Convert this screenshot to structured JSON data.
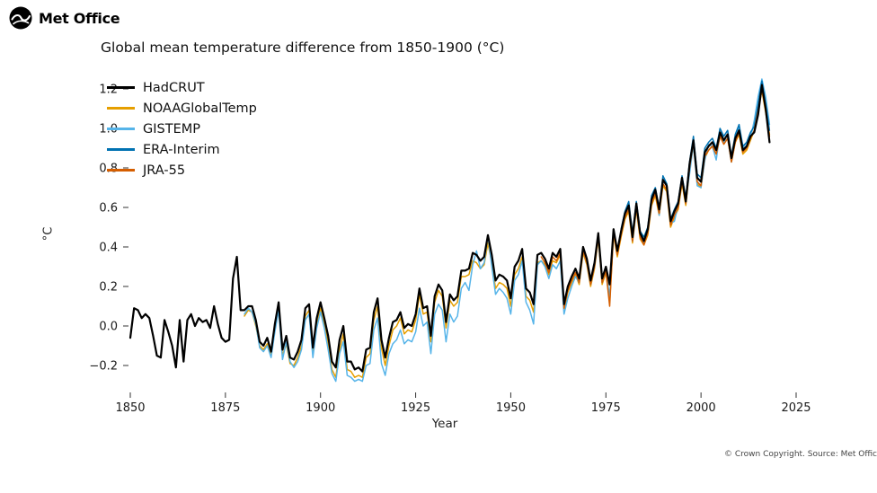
{
  "brand": {
    "name": "Met Office"
  },
  "footer": {
    "copyright": "© Crown Copyright. Source: Met Office"
  },
  "chart_data": {
    "type": "line",
    "title": "Global mean temperature difference from 1850-1900 (°C)",
    "xlabel": "Year",
    "ylabel": "°C",
    "xlim": [
      1845,
      2028
    ],
    "ylim": [
      -0.35,
      1.3
    ],
    "x_ticks": [
      1850,
      1875,
      1900,
      1925,
      1950,
      1975,
      2000,
      2025
    ],
    "y_ticks": [
      -0.2,
      0.0,
      0.2,
      0.4,
      0.6,
      0.8,
      1.0,
      1.2
    ],
    "grid": false,
    "legend_position": "top-left",
    "series": [
      {
        "name": "HadCRUT",
        "color": "#000000",
        "start_year": 1850,
        "values": [
          -0.06,
          0.09,
          0.08,
          0.04,
          0.06,
          0.04,
          -0.05,
          -0.15,
          -0.16,
          0.03,
          -0.03,
          -0.1,
          -0.21,
          0.03,
          -0.18,
          0.03,
          0.06,
          0.0,
          0.04,
          0.02,
          0.03,
          -0.01,
          0.1,
          0.01,
          -0.06,
          -0.08,
          -0.07,
          0.24,
          0.35,
          0.08,
          0.08,
          0.1,
          0.1,
          0.03,
          -0.08,
          -0.1,
          -0.06,
          -0.13,
          0.01,
          0.12,
          -0.12,
          -0.05,
          -0.16,
          -0.17,
          -0.13,
          -0.07,
          0.09,
          0.11,
          -0.11,
          0.04,
          0.12,
          0.04,
          -0.05,
          -0.18,
          -0.21,
          -0.07,
          0.0,
          -0.18,
          -0.18,
          -0.22,
          -0.21,
          -0.23,
          -0.12,
          -0.11,
          0.07,
          0.14,
          -0.07,
          -0.16,
          -0.06,
          0.02,
          0.03,
          0.07,
          -0.01,
          0.01,
          0.0,
          0.06,
          0.19,
          0.09,
          0.1,
          -0.05,
          0.15,
          0.21,
          0.18,
          0.02,
          0.16,
          0.13,
          0.15,
          0.28,
          0.28,
          0.29,
          0.37,
          0.36,
          0.33,
          0.35,
          0.46,
          0.36,
          0.23,
          0.26,
          0.25,
          0.23,
          0.14,
          0.3,
          0.33,
          0.39,
          0.19,
          0.17,
          0.11,
          0.36,
          0.37,
          0.34,
          0.29,
          0.37,
          0.35,
          0.39,
          0.11,
          0.2,
          0.25,
          0.29,
          0.24,
          0.4,
          0.34,
          0.23,
          0.32,
          0.47,
          0.24,
          0.3,
          0.21,
          0.49,
          0.38,
          0.48,
          0.57,
          0.61,
          0.45,
          0.62,
          0.47,
          0.43,
          0.49,
          0.64,
          0.69,
          0.59,
          0.74,
          0.71,
          0.53,
          0.58,
          0.62,
          0.75,
          0.63,
          0.82,
          0.94,
          0.75,
          0.73,
          0.88,
          0.91,
          0.93,
          0.89,
          0.98,
          0.94,
          0.97,
          0.85,
          0.95,
          0.99,
          0.89,
          0.91,
          0.96,
          0.98,
          1.07,
          1.22,
          1.1,
          0.93
        ]
      },
      {
        "name": "NOAAGlobalTemp",
        "color": "#E69F00",
        "start_year": 1880,
        "values": [
          0.05,
          0.08,
          0.07,
          0.0,
          -0.1,
          -0.12,
          -0.09,
          -0.15,
          -0.02,
          0.09,
          -0.15,
          -0.09,
          -0.19,
          -0.2,
          -0.16,
          -0.1,
          0.05,
          0.08,
          -0.14,
          0.01,
          0.09,
          0.01,
          -0.09,
          -0.22,
          -0.26,
          -0.12,
          -0.04,
          -0.22,
          -0.23,
          -0.26,
          -0.25,
          -0.26,
          -0.16,
          -0.14,
          0.03,
          0.1,
          -0.11,
          -0.2,
          -0.1,
          -0.02,
          0.0,
          0.04,
          -0.04,
          -0.02,
          -0.03,
          0.03,
          0.16,
          0.06,
          0.07,
          -0.08,
          0.12,
          0.18,
          0.15,
          -0.01,
          0.13,
          0.1,
          0.12,
          0.25,
          0.25,
          0.26,
          0.33,
          0.32,
          0.29,
          0.31,
          0.42,
          0.32,
          0.19,
          0.22,
          0.21,
          0.19,
          0.1,
          0.26,
          0.29,
          0.35,
          0.15,
          0.13,
          0.07,
          0.32,
          0.33,
          0.31,
          0.26,
          0.33,
          0.32,
          0.36,
          0.08,
          0.17,
          0.22,
          0.26,
          0.21,
          0.37,
          0.31,
          0.2,
          0.29,
          0.44,
          0.21,
          0.27,
          0.12,
          0.46,
          0.35,
          0.45,
          0.54,
          0.58,
          0.42,
          0.59,
          0.44,
          0.41,
          0.46,
          0.61,
          0.66,
          0.56,
          0.71,
          0.68,
          0.5,
          0.55,
          0.59,
          0.72,
          0.61,
          0.79,
          0.92,
          0.72,
          0.7,
          0.85,
          0.89,
          0.91,
          0.87,
          0.96,
          0.92,
          0.95,
          0.83,
          0.93,
          0.97,
          0.87,
          0.89,
          0.94,
          0.99,
          1.1,
          1.19,
          1.08,
          0.97
        ]
      },
      {
        "name": "GISTEMP",
        "color": "#56B4E9",
        "start_year": 1880,
        "values": [
          0.06,
          0.09,
          0.07,
          0.01,
          -0.11,
          -0.13,
          -0.1,
          -0.16,
          -0.03,
          0.08,
          -0.17,
          -0.08,
          -0.18,
          -0.21,
          -0.18,
          -0.12,
          0.03,
          0.06,
          -0.16,
          -0.01,
          0.07,
          -0.01,
          -0.12,
          -0.24,
          -0.28,
          -0.14,
          -0.08,
          -0.25,
          -0.26,
          -0.28,
          -0.27,
          -0.28,
          -0.2,
          -0.19,
          -0.02,
          0.04,
          -0.19,
          -0.25,
          -0.14,
          -0.09,
          -0.07,
          -0.02,
          -0.09,
          -0.07,
          -0.08,
          -0.03,
          0.09,
          0.0,
          0.02,
          -0.14,
          0.06,
          0.11,
          0.08,
          -0.08,
          0.06,
          0.02,
          0.05,
          0.19,
          0.22,
          0.18,
          0.31,
          0.38,
          0.29,
          0.32,
          0.46,
          0.3,
          0.16,
          0.19,
          0.17,
          0.14,
          0.06,
          0.23,
          0.26,
          0.33,
          0.12,
          0.08,
          0.01,
          0.31,
          0.33,
          0.3,
          0.24,
          0.31,
          0.29,
          0.33,
          0.06,
          0.14,
          0.2,
          0.25,
          0.22,
          0.38,
          0.32,
          0.21,
          0.3,
          0.45,
          0.22,
          0.28,
          0.15,
          0.47,
          0.37,
          0.47,
          0.56,
          0.61,
          0.43,
          0.6,
          0.46,
          0.42,
          0.48,
          0.63,
          0.7,
          0.56,
          0.73,
          0.72,
          0.52,
          0.53,
          0.61,
          0.74,
          0.64,
          0.77,
          0.92,
          0.71,
          0.7,
          0.84,
          0.92,
          0.91,
          0.84,
          0.98,
          0.93,
          0.95,
          0.83,
          0.94,
          1.01,
          0.9,
          0.93,
          0.95,
          1.04,
          1.16,
          1.25,
          1.16,
          1.02
        ]
      },
      {
        "name": "ERA-Interim",
        "color": "#0072B2",
        "start_year": 1979,
        "values": [
          0.49,
          0.58,
          0.63,
          0.47,
          0.63,
          0.48,
          0.45,
          0.5,
          0.66,
          0.7,
          0.6,
          0.76,
          0.72,
          0.54,
          0.59,
          0.63,
          0.76,
          0.65,
          0.83,
          0.96,
          0.77,
          0.75,
          0.9,
          0.93,
          0.95,
          0.9,
          1.0,
          0.96,
          0.99,
          0.86,
          0.97,
          1.02,
          0.91,
          0.93,
          0.98,
          1.01,
          1.12,
          1.24,
          1.12,
          0.99
        ]
      },
      {
        "name": "JRA-55",
        "color": "#D55E00",
        "start_year": 1958,
        "values": [
          0.35,
          0.32,
          0.27,
          0.35,
          0.33,
          0.37,
          0.09,
          0.18,
          0.23,
          0.27,
          0.22,
          0.38,
          0.32,
          0.21,
          0.3,
          0.45,
          0.22,
          0.28,
          0.1,
          0.47,
          0.36,
          0.46,
          0.55,
          0.59,
          0.43,
          0.6,
          0.45,
          0.41,
          0.47,
          0.62,
          0.67,
          0.57,
          0.72,
          0.69,
          0.51,
          0.56,
          0.6,
          0.73,
          0.62,
          0.8,
          0.93,
          0.73,
          0.71,
          0.86,
          0.89,
          0.91,
          0.87,
          0.96,
          0.92,
          0.95,
          0.83,
          0.93,
          0.98,
          0.88,
          0.9,
          0.95,
          0.99,
          1.09,
          1.2,
          1.09,
          0.96
        ]
      }
    ]
  }
}
